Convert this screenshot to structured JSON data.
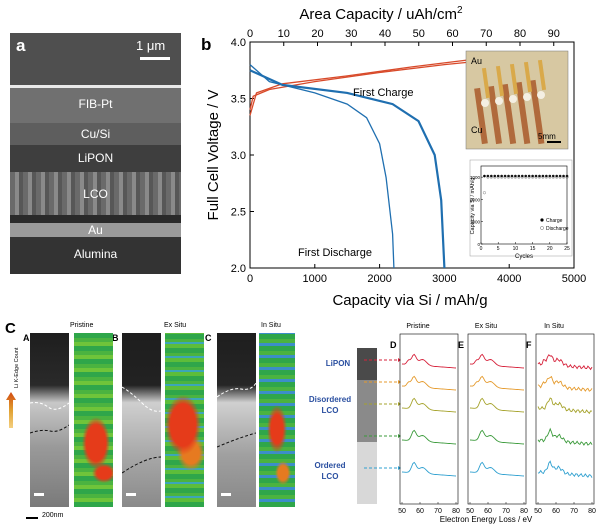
{
  "panel_a": {
    "letter": "a",
    "scale_bar": "1 μm",
    "layers": [
      "FIB-Pt",
      "Cu/Si",
      "LiPON",
      "LCO",
      "Au",
      "Alumina"
    ]
  },
  "panel_b": {
    "letter": "b",
    "top_axis_title": "Area Capacity / uAh/cm",
    "top_axis_title_sup": "2",
    "top_ticks": [
      "0",
      "10",
      "20",
      "30",
      "40",
      "50",
      "60",
      "70",
      "80",
      "90"
    ],
    "left_axis_title": "Full Cell Voltage / V",
    "left_ticks": [
      "2.0",
      "2.5",
      "3.0",
      "3.5",
      "4.0"
    ],
    "bottom_axis_title": "Capacity via Si / mAh/g",
    "bottom_ticks": [
      "0",
      "1000",
      "2000",
      "3000",
      "4000",
      "5000"
    ],
    "label_charge": "First Charge",
    "label_discharge": "First Discharge",
    "inset_photo": {
      "label_au": "Au",
      "label_cu": "Cu",
      "scale": "5mm"
    },
    "inset_cycle": {
      "ylabel": "Capacity via Si / mAh/g",
      "xlabel": "Cycles",
      "yticks": [
        "0",
        "1000",
        "2000",
        "3000"
      ],
      "xticks": [
        "0",
        "5",
        "10",
        "15",
        "20",
        "25"
      ],
      "legend_charge": "Charge",
      "legend_discharge": "Discharge"
    },
    "colors": {
      "charge": "#d84a2a",
      "discharge": "#1f6fb0"
    }
  },
  "panel_c": {
    "letter": "C",
    "sub_a": "A",
    "sub_b": "B",
    "sub_c": "C",
    "title_pristine": "Pristine",
    "title_exsitu": "Ex Situ",
    "title_insitu": "In Situ",
    "colorbar_label": "Li K-Edge Count",
    "scale": "200nm"
  },
  "panel_def": {
    "label_d": "D",
    "label_e": "E",
    "label_f": "F",
    "title_pristine": "Pristine",
    "title_exsitu": "Ex Situ",
    "title_insitu": "In Situ",
    "layer_lipon": "LiPON",
    "layer_disordered": "Disordered LCO",
    "layer_ordered": "Ordered LCO",
    "xticks": [
      "50",
      "60",
      "70",
      "80"
    ],
    "xlabel": "Electron Energy Loss / eV",
    "trace_colors": [
      "#d6213a",
      "#e59a2c",
      "#a6a32c",
      "#3b9a3b",
      "#2fa0d0"
    ]
  },
  "chart_data": [
    {
      "type": "line",
      "title": "",
      "xlabel": "Capacity via Si / mAh/g",
      "x2label": "Area Capacity / uAh/cm2",
      "ylabel": "Full Cell Voltage / V",
      "xlim": [
        0,
        5000
      ],
      "x2lim": [
        0,
        96
      ],
      "ylim": [
        2.0,
        4.0
      ],
      "series": [
        {
          "name": "First Charge",
          "x": [
            0,
            50,
            300,
            1000,
            2000,
            3000,
            3700
          ],
          "y": [
            3.4,
            3.52,
            3.58,
            3.65,
            3.73,
            3.8,
            3.84
          ]
        },
        {
          "name": "First Charge",
          "x": [
            0,
            100,
            500,
            1500,
            2500,
            3500,
            3700
          ],
          "y": [
            3.35,
            3.55,
            3.63,
            3.7,
            3.78,
            3.85,
            3.88
          ]
        },
        {
          "name": "First Discharge",
          "x": [
            0,
            300,
            1000,
            1500,
            1800,
            2000,
            2100,
            2200,
            2220
          ],
          "y": [
            3.8,
            3.65,
            3.55,
            3.45,
            3.33,
            3.1,
            2.8,
            2.3,
            2.0
          ]
        },
        {
          "name": "First Discharge",
          "x": [
            0,
            500,
            1500,
            2200,
            2600,
            2850,
            2950,
            3000
          ],
          "y": [
            3.75,
            3.62,
            3.55,
            3.45,
            3.3,
            3.0,
            2.6,
            2.0
          ]
        }
      ]
    },
    {
      "type": "scatter",
      "xlabel": "Cycles",
      "ylabel": "Capacity via Si / mAh/g",
      "xlim": [
        0,
        25
      ],
      "ylim": [
        0,
        3500
      ],
      "series": [
        {
          "name": "Charge",
          "x": [
            1,
            2,
            3,
            4,
            5,
            6,
            7,
            8,
            9,
            10,
            11,
            12,
            13,
            14,
            15,
            16,
            17,
            18,
            19,
            20,
            21,
            22,
            23,
            24,
            25
          ],
          "y": [
            3050,
            3050,
            3050,
            3050,
            3050,
            3050,
            3050,
            3050,
            3050,
            3050,
            3050,
            3050,
            3050,
            3050,
            3050,
            3050,
            3050,
            3050,
            3050,
            3050,
            3050,
            3050,
            3050,
            3050,
            3050
          ]
        },
        {
          "name": "Discharge",
          "x": [
            1,
            2,
            3,
            4,
            5,
            6,
            7,
            8,
            9,
            10,
            11,
            12,
            13,
            14,
            15,
            16,
            17,
            18,
            19,
            20,
            21,
            22,
            23,
            24,
            25
          ],
          "y": [
            2300,
            3000,
            3000,
            3000,
            3000,
            3000,
            3000,
            3000,
            3000,
            3000,
            3000,
            3000,
            3000,
            3000,
            3000,
            3000,
            3000,
            3000,
            3000,
            3000,
            3000,
            3000,
            3000,
            3000,
            3000
          ]
        }
      ]
    }
  ]
}
